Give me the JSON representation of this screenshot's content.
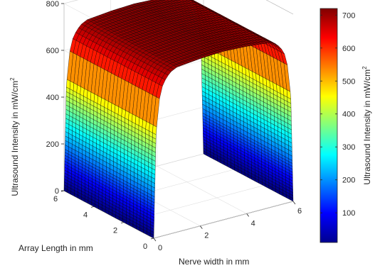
{
  "chart_data": {
    "type": "surface",
    "title": "",
    "xlabel": "Nerve width in mm",
    "ylabel": "Array Length in mm",
    "zlabel": "Ultrasound Intensity in mW/cm",
    "zlabel_sup": "2",
    "colorbar_label": "Ultrasound Intensity in mW/cm",
    "colorbar_label_sup": "2",
    "xlim": [
      0,
      6
    ],
    "ylim": [
      0,
      6
    ],
    "zlim": [
      0,
      800
    ],
    "x_ticks": [
      "0",
      "2",
      "4",
      "6"
    ],
    "y_ticks": [
      "0",
      "2",
      "4",
      "6"
    ],
    "z_ticks": [
      "0",
      "200",
      "400",
      "600",
      "800"
    ],
    "colorbar_ticks": [
      "100",
      "200",
      "300",
      "400",
      "500",
      "600",
      "700"
    ],
    "colorbar_range": [
      10,
      720
    ],
    "colormap": "jet",
    "grid": true,
    "surface": {
      "shape": "plateau in x, constant along y",
      "x_profile": [
        [
          0.0,
          0
        ],
        [
          0.1,
          440
        ],
        [
          0.2,
          570
        ],
        [
          0.4,
          650
        ],
        [
          0.7,
          690
        ],
        [
          1.0,
          705
        ],
        [
          2.0,
          715
        ],
        [
          3.0,
          720
        ],
        [
          4.0,
          715
        ],
        [
          5.0,
          705
        ],
        [
          5.3,
          690
        ],
        [
          5.6,
          650
        ],
        [
          5.8,
          570
        ],
        [
          5.9,
          440
        ],
        [
          6.0,
          0
        ]
      ]
    }
  }
}
